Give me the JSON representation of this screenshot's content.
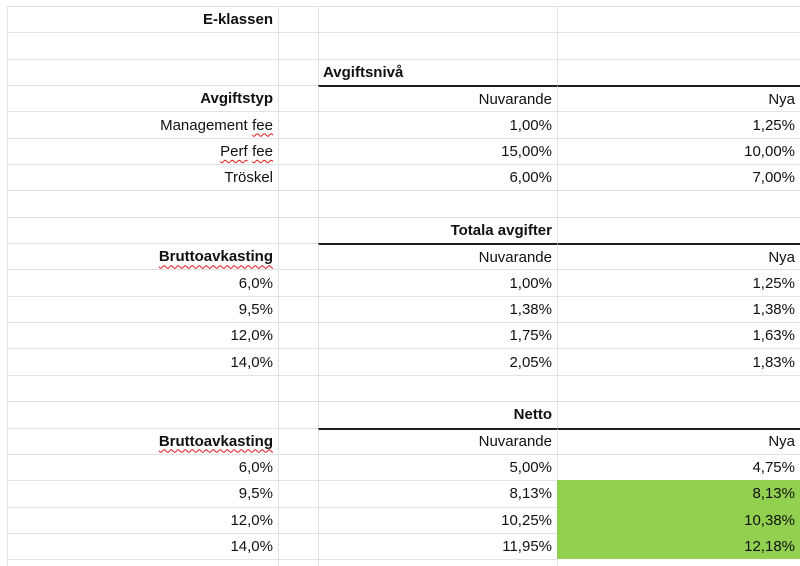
{
  "sheet": {
    "rows": [
      {
        "a": "E-klassen"
      },
      {},
      {
        "c": "Avgiftsnivå"
      },
      {
        "a": "Avgiftstyp",
        "c": "Nuvarande",
        "d": "Nya"
      },
      {
        "a_w1": "Management",
        "a_w2": "fee",
        "c": "1,00%",
        "d": "1,25%"
      },
      {
        "a_w1": "Perf",
        "a_w2": "fee",
        "c": "15,00%",
        "d": "10,00%"
      },
      {
        "a": "Tröskel",
        "c": "6,00%",
        "d": "7,00%"
      },
      {},
      {
        "c": "Totala avgifter"
      },
      {
        "a": "Bruttoavkasting",
        "c": "Nuvarande",
        "d": "Nya"
      },
      {
        "a": "6,0%",
        "c": "1,00%",
        "d": "1,25%"
      },
      {
        "a": "9,5%",
        "c": "1,38%",
        "d": "1,38%"
      },
      {
        "a": "12,0%",
        "c": "1,75%",
        "d": "1,63%"
      },
      {
        "a": "14,0%",
        "c": "2,05%",
        "d": "1,83%"
      },
      {},
      {
        "c": "Netto"
      },
      {
        "a": "Bruttoavkasting",
        "c": "Nuvarande",
        "d": "Nya"
      },
      {
        "a": "6,0%",
        "c": "5,00%",
        "d": "4,75%"
      },
      {
        "a": "9,5%",
        "c": "8,13%",
        "d": "8,13%"
      },
      {
        "a": "12,0%",
        "c": "10,25%",
        "d": "10,38%"
      },
      {
        "a": "14,0%",
        "c": "11,95%",
        "d": "12,18%"
      },
      {}
    ],
    "highlighted_cells": [
      "D19",
      "D20",
      "D21"
    ],
    "spellcheck_underlined": [
      "fee (in Management fee)",
      "Perf",
      "fee (in Perf fee)",
      "Bruttoavkasting (row 10)",
      "Bruttoavkasting (row 17)"
    ]
  },
  "colors": {
    "highlight_fill": "#92d050",
    "gridline": "#e2e2e2",
    "section_border": "#1f1f1f",
    "spellcheck_squiggle": "#e21414",
    "text": "#111111",
    "background": "#ffffff"
  }
}
